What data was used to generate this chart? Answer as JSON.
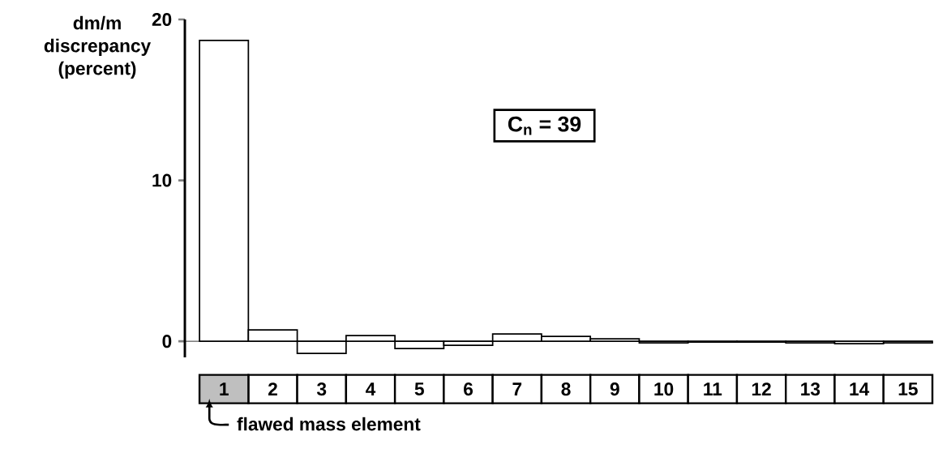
{
  "chart_data": {
    "type": "bar",
    "ylabel": "dm/m discrepancy (percent)",
    "categories": [
      "1",
      "2",
      "3",
      "4",
      "5",
      "6",
      "7",
      "8",
      "9",
      "10",
      "11",
      "12",
      "13",
      "14",
      "15"
    ],
    "values": [
      18.7,
      0.7,
      -0.75,
      0.35,
      -0.45,
      -0.25,
      0.45,
      0.3,
      0.15,
      -0.1,
      -0.05,
      -0.05,
      -0.1,
      -0.15,
      -0.1
    ],
    "color": "#ffffff",
    "ylim": [
      -1,
      20
    ],
    "yticks": [
      0,
      10,
      20
    ],
    "grid": false,
    "annotations": [
      "C$_{n}$ = 39",
      "flawed mass element"
    ]
  }
}
